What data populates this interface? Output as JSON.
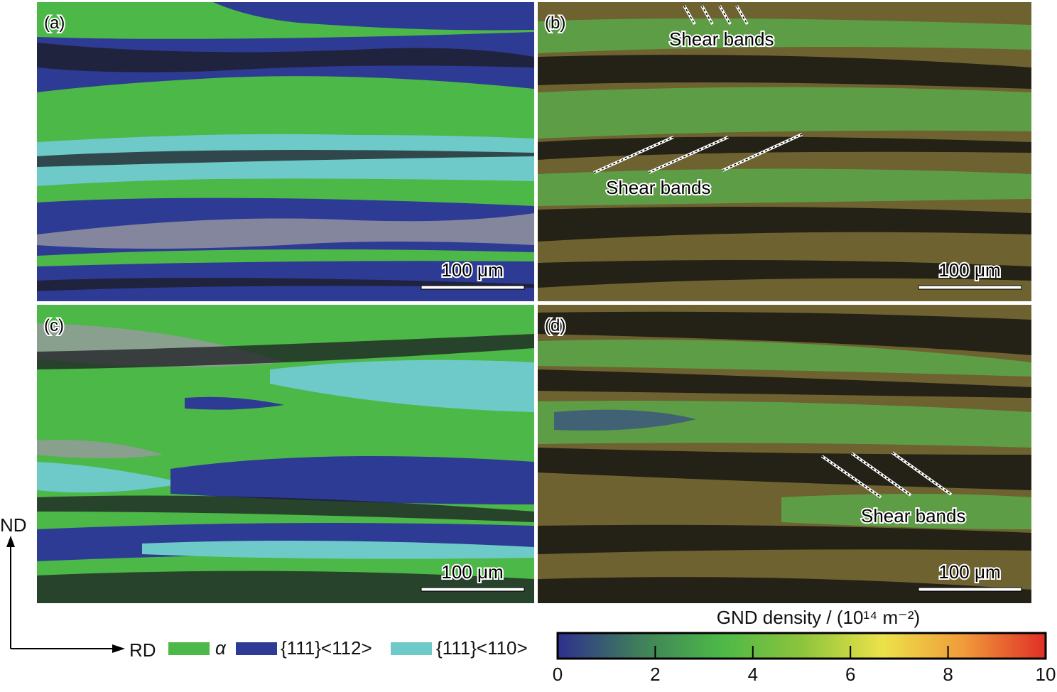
{
  "panels": [
    {
      "label": "(a)",
      "scale_bar": "100 μm"
    },
    {
      "label": "(b)",
      "scale_bar": "100 μm",
      "annotations": [
        "Shear bands",
        "Shear bands"
      ]
    },
    {
      "label": "(c)",
      "scale_bar": "100 μm"
    },
    {
      "label": "(d)",
      "scale_bar": "100 μm",
      "annotations": [
        "Shear bands"
      ]
    }
  ],
  "axes": {
    "vertical": "ND",
    "horizontal": "RD"
  },
  "legend": {
    "items": [
      {
        "label": "α",
        "color": "#4cb848"
      },
      {
        "label": "{111}<112>",
        "color": "#2e3b94"
      },
      {
        "label": "{111}<110>",
        "color": "#6ec9c9"
      }
    ]
  },
  "colorbar": {
    "title": "GND density / (10¹⁴ m⁻²)",
    "range": [
      0,
      10
    ],
    "ticks": [
      0,
      2,
      4,
      6,
      8,
      10
    ],
    "colors": [
      "#2e2f8e",
      "#3f7f5a",
      "#4cb848",
      "#8cc43c",
      "#ece24a",
      "#f09a3a",
      "#e02e26"
    ]
  }
}
